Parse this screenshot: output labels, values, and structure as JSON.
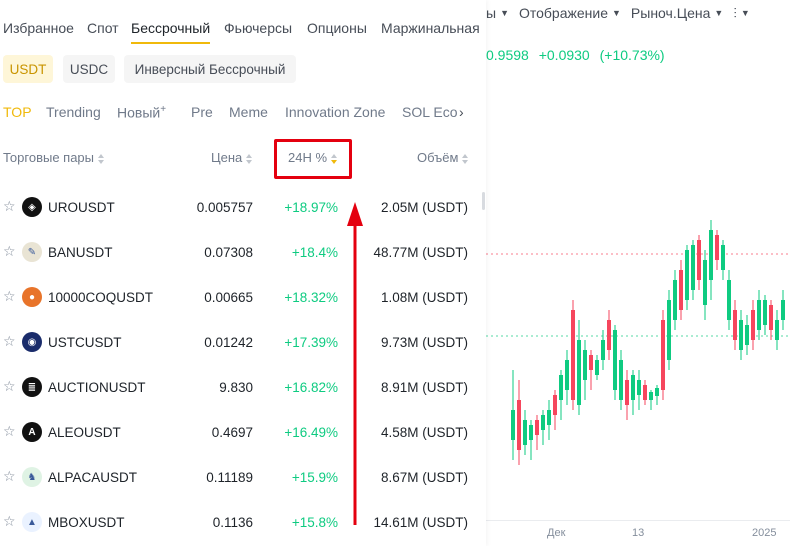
{
  "chart": {
    "toolbar": [
      {
        "label": "ы",
        "caret": true
      },
      {
        "label": "Отображение",
        "caret": true
      },
      {
        "label": "Рыноч.Цена",
        "caret": true
      },
      {
        "label": "⫶",
        "caret": true
      }
    ],
    "price": "0.9598",
    "change_abs": "+0.0930",
    "change_pct": "(+10.73%)",
    "x_labels": [
      "Дек",
      "13",
      "2025"
    ],
    "colors": {
      "up": "#0ecb81",
      "down": "#f6465d"
    }
  },
  "nav": {
    "tabs": [
      "Избранное",
      "Спот",
      "Бессрочный",
      "Фьючерсы",
      "Опционы",
      "Маржинальная"
    ],
    "active": "Бессрочный"
  },
  "quote": {
    "chips": [
      "USDT",
      "USDC",
      "Инверсный Бессрочный"
    ],
    "active": "USDT"
  },
  "categories": {
    "tabs": [
      "TOP",
      "Trending",
      "Новый",
      "Pre",
      "Meme",
      "Innovation Zone",
      "SOL Eco"
    ],
    "new_badge": "+",
    "more_icon": "chevron-right-icon",
    "more_glyph": "›",
    "active": "TOP"
  },
  "table": {
    "headers": {
      "pair": "Торговые пары",
      "price": "Цена",
      "change": "24H %",
      "volume": "Объём"
    },
    "rows": [
      {
        "symbol": "UROUSDT",
        "price": "0.005757",
        "change": "+18.97%",
        "volume": "2.05M (USDT)",
        "icon_color": "#111111",
        "icon_glyph": "◈"
      },
      {
        "symbol": "BANUSDT",
        "price": "0.07308",
        "change": "+18.4%",
        "volume": "48.77M (USDT)",
        "icon_color": "#e9e4d4",
        "icon_glyph": "✎"
      },
      {
        "symbol": "10000COQUSDT",
        "price": "0.00665",
        "change": "+18.32%",
        "volume": "1.08M (USDT)",
        "icon_color": "#e8742a",
        "icon_glyph": "●"
      },
      {
        "symbol": "USTCUSDT",
        "price": "0.01242",
        "change": "+17.39%",
        "volume": "9.73M (USDT)",
        "icon_color": "#1a2c6b",
        "icon_glyph": "◉"
      },
      {
        "symbol": "AUCTIONUSDT",
        "price": "9.830",
        "change": "+16.82%",
        "volume": "8.91M (USDT)",
        "icon_color": "#111111",
        "icon_glyph": "≣"
      },
      {
        "symbol": "ALEOUSDT",
        "price": "0.4697",
        "change": "+16.49%",
        "volume": "4.58M (USDT)",
        "icon_color": "#111111",
        "icon_glyph": "A"
      },
      {
        "symbol": "ALPACAUSDT",
        "price": "0.11189",
        "change": "+15.9%",
        "volume": "8.67M (USDT)",
        "icon_color": "#dff3e4",
        "icon_glyph": "♞"
      },
      {
        "symbol": "MBOXUSDT",
        "price": "0.1136",
        "change": "+15.8%",
        "volume": "14.61M (USDT)",
        "icon_color": "#eaf2ff",
        "icon_glyph": "▲"
      }
    ]
  }
}
